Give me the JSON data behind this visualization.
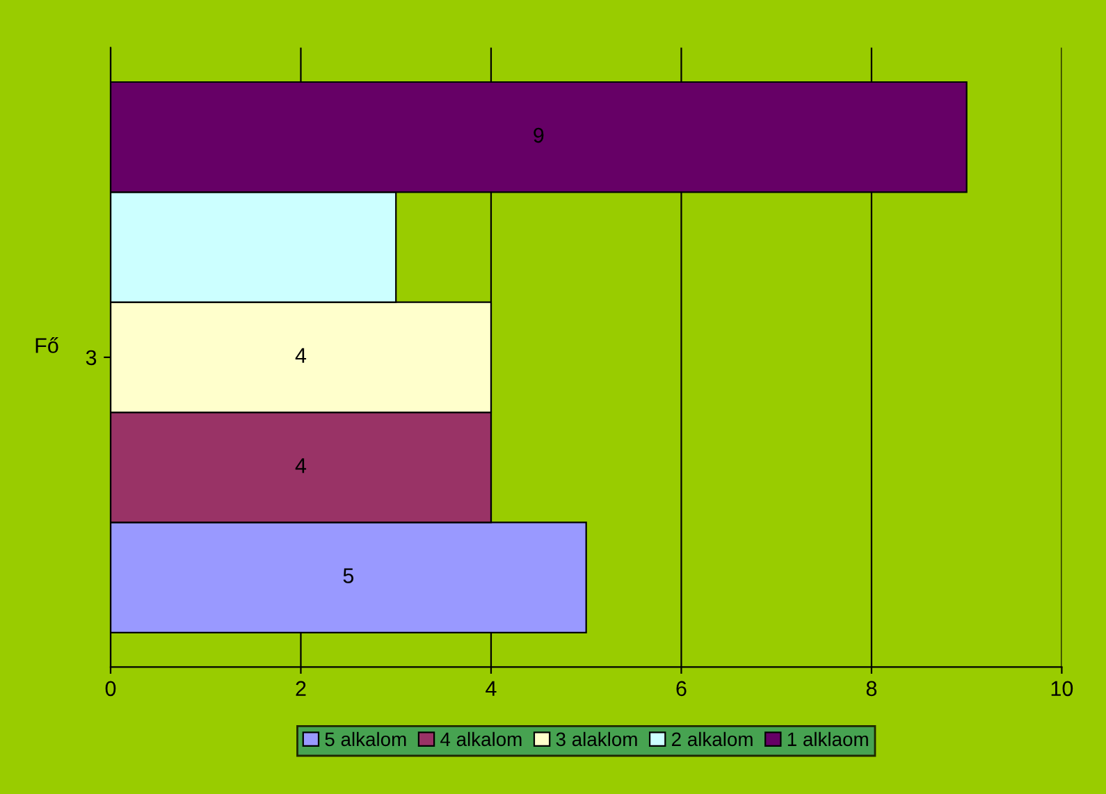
{
  "chart_data": {
    "type": "bar",
    "orientation": "horizontal",
    "categories": [
      "3"
    ],
    "ylabel": "Fő",
    "xlim": [
      0,
      10
    ],
    "xticks": [
      0,
      2,
      4,
      6,
      8,
      10
    ],
    "grid": "x",
    "legend": "bottom",
    "series": [
      {
        "name": "5 alkalom",
        "color": "#9999ff",
        "values": [
          5
        ],
        "value_labels": [
          "5"
        ]
      },
      {
        "name": "4 alkalom",
        "color": "#993366",
        "values": [
          4
        ],
        "value_labels": [
          "4"
        ]
      },
      {
        "name": "3 alaklom",
        "color": "#ffffcc",
        "values": [
          4
        ],
        "value_labels": [
          "4"
        ]
      },
      {
        "name": "2 alkalom",
        "color": "#ccffff",
        "values": [
          3
        ],
        "value_labels": [
          null
        ]
      },
      {
        "name": "1 alklaom",
        "color": "#660066",
        "values": [
          9
        ],
        "value_labels": [
          "9"
        ]
      }
    ]
  }
}
